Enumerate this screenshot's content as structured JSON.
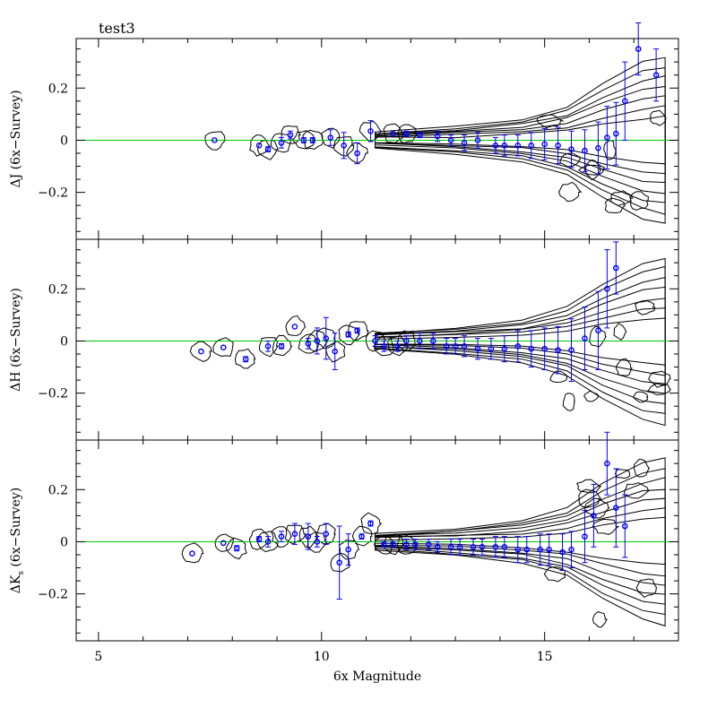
{
  "colors": {
    "zero_line": "#00c800",
    "points": "#0000ff",
    "contours": "#000000",
    "frame": "#000000"
  },
  "chart_data": [
    {
      "type": "scatter",
      "title": "test3",
      "ylabel_prefix": "ΔJ",
      "ylabel_suffix": "(6x−Survey)",
      "ylabel_subscript": "",
      "xlim": [
        4.5,
        18
      ],
      "ylim": [
        -0.38,
        0.39
      ],
      "yticks": [
        -0.2,
        0,
        0.2
      ],
      "ytick_labels": [
        "−0.2",
        "0",
        "0.2"
      ],
      "reference_line_y": 0,
      "series": [
        {
          "x": [
            7.6,
            8.6,
            8.8,
            9.1,
            9.3,
            9.6,
            9.8,
            10.2,
            10.5,
            10.8,
            11.1,
            11.6,
            11.9,
            12.2,
            12.6,
            12.9,
            13.2,
            13.5,
            13.9,
            14.1,
            14.4,
            14.7,
            15.0,
            15.3,
            15.6,
            15.9,
            16.2,
            16.4,
            16.6,
            16.8,
            17.1,
            17.5
          ],
          "y": [
            0.0,
            -0.02,
            -0.035,
            -0.01,
            0.02,
            0.0,
            0.0,
            0.01,
            -0.02,
            -0.05,
            0.035,
            0.025,
            0.025,
            0.02,
            0.015,
            0.0,
            -0.01,
            0.0,
            -0.02,
            -0.02,
            -0.02,
            -0.02,
            -0.015,
            -0.02,
            -0.035,
            -0.04,
            -0.03,
            0.01,
            0.025,
            0.15,
            0.35,
            0.25
          ],
          "err": [
            0.005,
            0.005,
            0.01,
            0.02,
            0.015,
            0.01,
            0.01,
            0.03,
            0.05,
            0.04,
            0.04,
            0.005,
            0.01,
            0.01,
            0.02,
            0.02,
            0.03,
            0.03,
            0.03,
            0.04,
            0.04,
            0.05,
            0.06,
            0.07,
            0.07,
            0.08,
            0.1,
            0.12,
            0.12,
            0.15,
            0.1,
            0.1
          ]
        }
      ]
    },
    {
      "type": "scatter",
      "title": "",
      "ylabel_prefix": "ΔH",
      "ylabel_suffix": "(6x−Survey)",
      "ylabel_subscript": "",
      "xlim": [
        4.5,
        18
      ],
      "ylim": [
        -0.38,
        0.39
      ],
      "yticks": [
        -0.2,
        0,
        0.2
      ],
      "ytick_labels": [
        "−0.2",
        "0",
        "0.2"
      ],
      "reference_line_y": 0,
      "series": [
        {
          "x": [
            7.3,
            7.8,
            8.3,
            8.8,
            9.1,
            9.4,
            9.7,
            9.9,
            10.1,
            10.3,
            10.6,
            10.8,
            11.2,
            11.4,
            11.7,
            11.9,
            12.2,
            12.5,
            12.8,
            13.0,
            13.2,
            13.5,
            13.8,
            14.1,
            14.4,
            14.7,
            15.0,
            15.3,
            15.6,
            15.9,
            16.2,
            16.4,
            16.6
          ],
          "y": [
            -0.04,
            -0.025,
            -0.07,
            -0.02,
            -0.02,
            0.055,
            -0.01,
            0.0,
            0.01,
            -0.04,
            0.025,
            0.04,
            0.0,
            -0.02,
            -0.02,
            0.0,
            0.0,
            0.0,
            -0.02,
            -0.02,
            -0.02,
            -0.03,
            -0.03,
            -0.03,
            -0.02,
            -0.03,
            -0.03,
            -0.035,
            -0.035,
            0.01,
            0.04,
            0.2,
            0.28
          ],
          "err": [
            0.005,
            0.005,
            0.01,
            0.02,
            0.01,
            0.005,
            0.02,
            0.05,
            0.08,
            0.07,
            0.01,
            0.01,
            0.02,
            0.02,
            0.02,
            0.02,
            0.03,
            0.03,
            0.03,
            0.03,
            0.04,
            0.04,
            0.04,
            0.05,
            0.06,
            0.07,
            0.08,
            0.09,
            0.12,
            0.12,
            0.15,
            0.15,
            0.1
          ]
        }
      ]
    },
    {
      "type": "scatter",
      "title": "",
      "ylabel_prefix": "ΔK",
      "ylabel_suffix": "(6x−Survey)",
      "ylabel_subscript": "s",
      "xlabel": "6x Magnitude",
      "xlim": [
        4.5,
        18
      ],
      "ylim": [
        -0.38,
        0.39
      ],
      "xticks": [
        5,
        10,
        15
      ],
      "xtick_labels": [
        "5",
        "10",
        "15"
      ],
      "yticks": [
        -0.2,
        0,
        0.2
      ],
      "ytick_labels": [
        "−0.2",
        "0",
        "0.2"
      ],
      "reference_line_y": 0,
      "series": [
        {
          "x": [
            7.1,
            7.8,
            8.1,
            8.6,
            8.8,
            9.1,
            9.4,
            9.7,
            9.9,
            10.1,
            10.4,
            10.6,
            10.9,
            11.1,
            11.4,
            11.6,
            11.9,
            12.1,
            12.4,
            12.6,
            12.9,
            13.1,
            13.4,
            13.6,
            13.9,
            14.1,
            14.4,
            14.6,
            14.9,
            15.1,
            15.4,
            15.6,
            15.9,
            16.1,
            16.4,
            16.6,
            16.8
          ],
          "y": [
            -0.045,
            -0.005,
            -0.025,
            0.01,
            0.0,
            0.02,
            0.03,
            0.02,
            0.0,
            0.03,
            -0.08,
            -0.03,
            0.02,
            0.07,
            -0.01,
            -0.01,
            -0.01,
            -0.01,
            -0.01,
            -0.02,
            -0.02,
            -0.02,
            -0.02,
            -0.02,
            -0.02,
            -0.02,
            -0.03,
            -0.03,
            -0.03,
            -0.03,
            -0.04,
            -0.03,
            0.02,
            0.1,
            0.3,
            0.13,
            0.06
          ],
          "err": [
            0.005,
            0.005,
            0.01,
            0.01,
            0.02,
            0.02,
            0.04,
            0.05,
            0.02,
            0.04,
            0.14,
            0.06,
            0.01,
            0.01,
            0.01,
            0.01,
            0.02,
            0.02,
            0.02,
            0.02,
            0.03,
            0.03,
            0.03,
            0.03,
            0.04,
            0.04,
            0.05,
            0.05,
            0.06,
            0.06,
            0.07,
            0.07,
            0.1,
            0.12,
            0.12,
            0.15,
            0.12
          ]
        }
      ]
    }
  ]
}
